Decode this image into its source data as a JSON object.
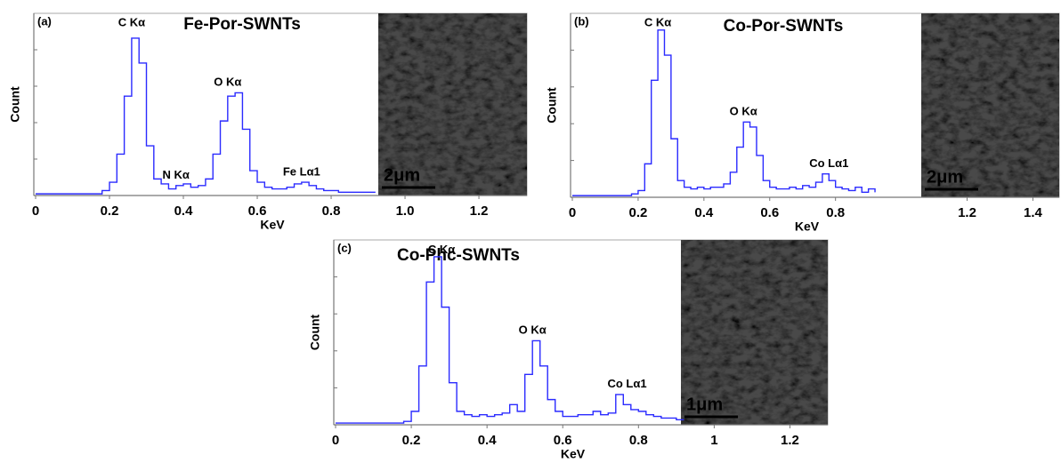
{
  "chart_data": [
    {
      "type": "line",
      "panel": "(a)",
      "title": "Fe-Por-SWNTs",
      "x_label": "KeV",
      "y_label": "Count",
      "inset_scale_bar": "2μm",
      "xlim": [
        0,
        1.33
      ],
      "ylim": [
        0,
        110
      ],
      "xticks": [
        0,
        0.2,
        0.4,
        0.6,
        0.8,
        {
          "value": 1,
          "label": "1.0"
        },
        1.2
      ],
      "x": [
        0,
        0.02,
        0.04,
        0.06,
        0.08,
        0.1,
        0.12,
        0.14,
        0.16,
        0.18,
        0.2,
        0.22,
        0.24,
        0.26,
        0.28,
        0.3,
        0.32,
        0.34,
        0.36,
        0.38,
        0.4,
        0.42,
        0.44,
        0.46,
        0.48,
        0.5,
        0.52,
        0.54,
        0.56,
        0.58,
        0.6,
        0.62,
        0.64,
        0.66,
        0.68,
        0.7,
        0.72,
        0.74,
        0.76,
        0.78,
        0.8,
        0.82,
        0.84,
        0.86,
        0.88,
        0.9,
        0.92
      ],
      "series": [
        {
          "color": "#2b2bff",
          "values": [
            1,
            1,
            1,
            1,
            1,
            1,
            1,
            1,
            1,
            3,
            8,
            25,
            60,
            95,
            80,
            30,
            10,
            7,
            4,
            6,
            7,
            5,
            6,
            10,
            25,
            45,
            60,
            62,
            40,
            15,
            8,
            5,
            4,
            4,
            5,
            7,
            8,
            6,
            4,
            3,
            3,
            2,
            2,
            2,
            2,
            2,
            2
          ]
        }
      ],
      "annotations": [
        {
          "text": "C Kα",
          "x": 0.26,
          "y": 104
        },
        {
          "text": "N Kα",
          "x": 0.38,
          "y": 12
        },
        {
          "text": "O Kα",
          "x": 0.52,
          "y": 68
        },
        {
          "text": "Fe Lα1",
          "x": 0.72,
          "y": 14
        }
      ]
    },
    {
      "type": "line",
      "panel": "(b)",
      "title": "Co-Por-SWNTs",
      "x_label": "KeV",
      "y_label": "Count",
      "inset_scale_bar": "2μm",
      "xlim": [
        0,
        1.48
      ],
      "ylim": [
        0,
        110
      ],
      "xticks": [
        0,
        0.2,
        0.4,
        0.6,
        0.8,
        1.2,
        1.4
      ],
      "x": [
        0,
        0.02,
        0.04,
        0.06,
        0.08,
        0.1,
        0.12,
        0.14,
        0.16,
        0.18,
        0.2,
        0.22,
        0.24,
        0.26,
        0.28,
        0.3,
        0.32,
        0.34,
        0.36,
        0.38,
        0.4,
        0.42,
        0.44,
        0.46,
        0.48,
        0.5,
        0.52,
        0.54,
        0.56,
        0.58,
        0.6,
        0.62,
        0.64,
        0.66,
        0.68,
        0.7,
        0.72,
        0.74,
        0.76,
        0.78,
        0.8,
        0.82,
        0.84,
        0.86,
        0.88,
        0.9,
        0.92
      ],
      "series": [
        {
          "color": "#2b2bff",
          "values": [
            1,
            1,
            1,
            1,
            1,
            1,
            1,
            1,
            1,
            2,
            4,
            20,
            70,
            100,
            85,
            35,
            10,
            6,
            5,
            6,
            5,
            6,
            6,
            8,
            15,
            30,
            45,
            42,
            25,
            10,
            6,
            5,
            5,
            6,
            5,
            7,
            6,
            9,
            14,
            10,
            6,
            5,
            4,
            6,
            3,
            5,
            3
          ]
        }
      ],
      "annotations": [
        {
          "text": "C Kα",
          "x": 0.26,
          "y": 104
        },
        {
          "text": "O Kα",
          "x": 0.52,
          "y": 51
        },
        {
          "text": "Co Lα1",
          "x": 0.78,
          "y": 20
        }
      ]
    },
    {
      "type": "line",
      "panel": "(c)",
      "title": "Co-Phc-SWNTs",
      "x_label": "KeV",
      "y_label": "Count",
      "inset_scale_bar": "1μm",
      "xlim": [
        0,
        1.3
      ],
      "ylim": [
        0,
        110
      ],
      "xticks": [
        0,
        0.2,
        0.4,
        0.6,
        0.8,
        1,
        1.2
      ],
      "x": [
        0,
        0.02,
        0.04,
        0.06,
        0.08,
        0.1,
        0.12,
        0.14,
        0.16,
        0.18,
        0.2,
        0.22,
        0.24,
        0.26,
        0.28,
        0.3,
        0.32,
        0.34,
        0.36,
        0.38,
        0.4,
        0.42,
        0.44,
        0.46,
        0.48,
        0.5,
        0.52,
        0.54,
        0.56,
        0.58,
        0.6,
        0.62,
        0.64,
        0.66,
        0.68,
        0.7,
        0.72,
        0.74,
        0.76,
        0.78,
        0.8,
        0.82,
        0.84,
        0.86,
        0.88,
        0.9,
        0.92
      ],
      "series": [
        {
          "color": "#2b2bff",
          "values": [
            1,
            1,
            1,
            1,
            1,
            1,
            1,
            1,
            1,
            2,
            8,
            35,
            85,
            100,
            70,
            25,
            8,
            6,
            5,
            6,
            5,
            6,
            7,
            12,
            8,
            30,
            50,
            35,
            15,
            8,
            5,
            5,
            6,
            6,
            8,
            6,
            7,
            18,
            12,
            9,
            8,
            6,
            5,
            4,
            4,
            3,
            3
          ]
        }
      ],
      "annotations": [
        {
          "text": "C Kα",
          "x": 0.28,
          "y": 104
        },
        {
          "text": "O Kα",
          "x": 0.52,
          "y": 56
        },
        {
          "text": "Co Lα1",
          "x": 0.77,
          "y": 24
        }
      ]
    }
  ]
}
